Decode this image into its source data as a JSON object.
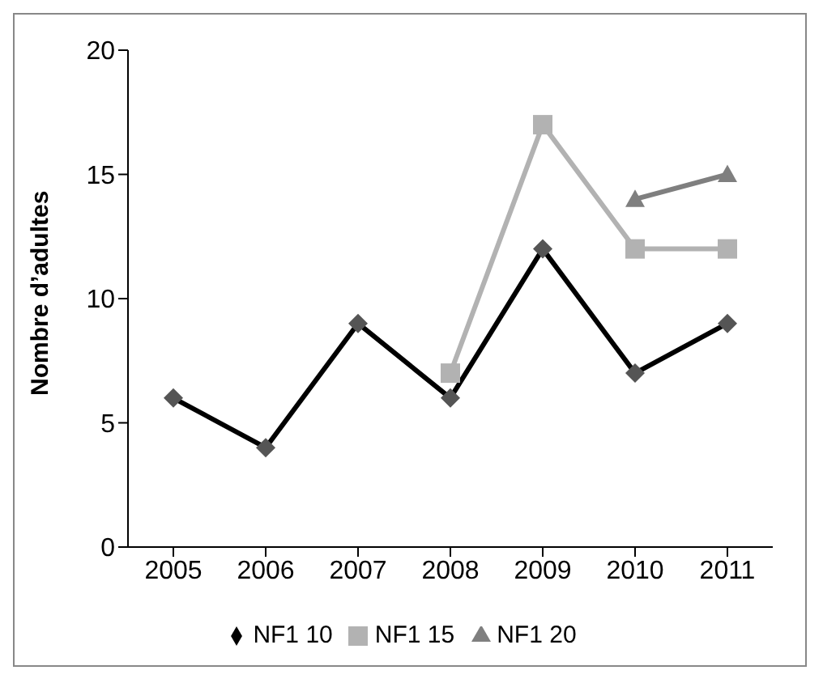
{
  "chart_data": {
    "type": "line",
    "ylabel": "Nombre d’adultes",
    "categories": [
      "2005",
      "2006",
      "2007",
      "2008",
      "2009",
      "2010",
      "2011"
    ],
    "series": [
      {
        "name": "NF1 10",
        "color": "#000000",
        "marker": "diamond",
        "values": [
          6,
          4,
          9,
          6,
          12,
          7,
          9
        ]
      },
      {
        "name": "NF1 15",
        "color": "#b2b2b2",
        "marker": "square",
        "values": [
          null,
          null,
          null,
          7,
          17,
          12,
          12
        ]
      },
      {
        "name": "NF1 20",
        "color": "#7f7f7f",
        "marker": "triangle",
        "values": [
          null,
          null,
          null,
          null,
          null,
          14,
          15
        ]
      }
    ],
    "ylim": [
      0,
      20
    ],
    "yticks": [
      0,
      5,
      10,
      15,
      20
    ],
    "grid": false,
    "legend": "bottom",
    "line_style": "solid"
  }
}
